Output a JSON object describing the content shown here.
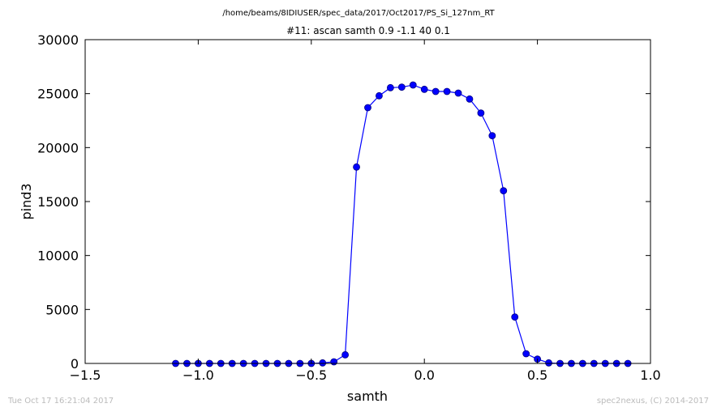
{
  "header": {
    "path": "/home/beams/8IDIUSER/spec_data/2017/Oct2017/PS_Si_127nm_RT"
  },
  "footer": {
    "timestamp": "Tue Oct 17 16:21:04 2017",
    "credit": "spec2nexus, (C) 2014-2017"
  },
  "chart_data": {
    "type": "line",
    "title": "#11: ascan  samth 0.9 -1.1  40 0.1",
    "xlabel": "samth",
    "ylabel": "pind3",
    "xlim": [
      -1.5,
      1.0
    ],
    "ylim": [
      0,
      30000
    ],
    "grid": false,
    "legend": "none",
    "marker": "circle",
    "x_ticks": [
      -1.5,
      -1.0,
      -0.5,
      0.0,
      0.5,
      1.0
    ],
    "x_tick_labels": [
      "−1.5",
      "−1.0",
      "−0.5",
      "0.0",
      "0.5",
      "1.0"
    ],
    "y_ticks": [
      0,
      5000,
      10000,
      15000,
      20000,
      25000,
      30000
    ],
    "y_tick_labels": [
      "0",
      "5000",
      "10000",
      "15000",
      "20000",
      "25000",
      "30000"
    ],
    "colors": {
      "line": "#0000ff",
      "marker_fill": "#0000ff",
      "marker_edge": "#000080"
    },
    "series": [
      {
        "x": [
          -1.1,
          -1.05,
          -1.0,
          -0.95,
          -0.9,
          -0.85,
          -0.8,
          -0.75,
          -0.7,
          -0.65,
          -0.6,
          -0.55,
          -0.5,
          -0.45,
          -0.4,
          -0.35,
          -0.3,
          -0.25,
          -0.2,
          -0.15,
          -0.1,
          -0.05,
          0.0,
          0.05,
          0.1,
          0.15,
          0.2,
          0.25,
          0.3,
          0.35,
          0.4,
          0.45,
          0.5,
          0.55,
          0.6,
          0.65,
          0.7,
          0.75,
          0.8,
          0.85,
          0.9
        ],
        "y": [
          0,
          0,
          0,
          0,
          0,
          0,
          0,
          0,
          0,
          0,
          0,
          0,
          0,
          50,
          150,
          800,
          18200,
          23700,
          24800,
          25550,
          25600,
          25800,
          25400,
          25200,
          25200,
          25050,
          24500,
          23200,
          21100,
          16000,
          4300,
          900,
          400,
          50,
          0,
          0,
          0,
          0,
          0,
          0,
          0
        ]
      }
    ]
  }
}
